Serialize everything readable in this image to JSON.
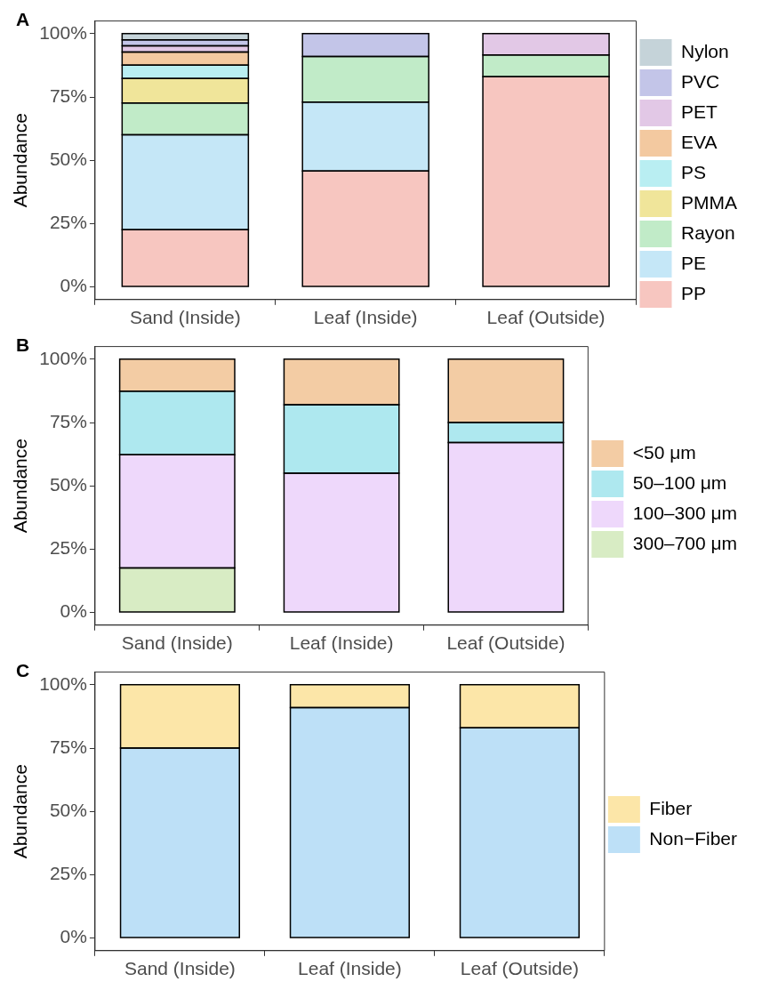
{
  "chart_data": [
    {
      "type": "bar",
      "title": "A",
      "ylabel": "Abundance",
      "categories": [
        "Sand (Inside)",
        "Leaf (Inside)",
        "Leaf (Outside)"
      ],
      "stacked": true,
      "legend": "right",
      "grid": false,
      "ylim": [
        -5,
        105
      ],
      "yticks": [
        {
          "value": 0,
          "label": "0%"
        },
        {
          "value": 25,
          "label": "25%"
        },
        {
          "value": 50,
          "label": "50%"
        },
        {
          "value": 75,
          "label": "75%"
        },
        {
          "value": 100,
          "label": "100%"
        }
      ],
      "series": [
        {
          "name": "PP",
          "color": "#f7c6c0",
          "values": [
            22.6,
            45.8,
            83.0
          ]
        },
        {
          "name": "PE",
          "color": "#c5e7f7",
          "values": [
            37.5,
            27.2,
            0
          ]
        },
        {
          "name": "Rayon",
          "color": "#c1ebc8",
          "values": [
            12.5,
            18.0,
            8.6
          ]
        },
        {
          "name": "PMMA",
          "color": "#f0e59a",
          "values": [
            9.7,
            0,
            0
          ]
        },
        {
          "name": "PS",
          "color": "#b9eef2",
          "values": [
            5.3,
            0,
            0
          ]
        },
        {
          "name": "EVA",
          "color": "#f3c9a0",
          "values": [
            5.1,
            0,
            0
          ]
        },
        {
          "name": "PET",
          "color": "#e2c8e6",
          "values": [
            2.5,
            0,
            8.4
          ]
        },
        {
          "name": "PVC",
          "color": "#c3c5e8",
          "values": [
            2.4,
            9.0,
            0
          ]
        },
        {
          "name": "Nylon",
          "color": "#c5d3d9",
          "values": [
            2.4,
            0,
            0
          ]
        }
      ]
    },
    {
      "type": "bar",
      "title": "B",
      "ylabel": "Abundance",
      "categories": [
        "Sand (Inside)",
        "Leaf (Inside)",
        "Leaf (Outside)"
      ],
      "stacked": true,
      "legend": "right",
      "grid": false,
      "ylim": [
        -5,
        105
      ],
      "yticks": [
        {
          "value": 0,
          "label": "0%"
        },
        {
          "value": 25,
          "label": "25%"
        },
        {
          "value": 50,
          "label": "50%"
        },
        {
          "value": 75,
          "label": "75%"
        },
        {
          "value": 100,
          "label": "100%"
        }
      ],
      "series": [
        {
          "name": "300–700 μm",
          "color": "#d8ecc4",
          "values": [
            17.6,
            0,
            0
          ]
        },
        {
          "name": "100–300 μm",
          "color": "#eed8fb",
          "values": [
            44.7,
            55.0,
            67.1
          ]
        },
        {
          "name": "50–100 μm",
          "color": "#aee8ef",
          "values": [
            25.1,
            27.0,
            7.9
          ]
        },
        {
          "name": "<50 μm",
          "color": "#f3cca4",
          "values": [
            12.6,
            18.0,
            25.0
          ]
        }
      ]
    },
    {
      "type": "bar",
      "title": "C",
      "ylabel": "Abundance",
      "categories": [
        "Sand (Inside)",
        "Leaf (Inside)",
        "Leaf (Outside)"
      ],
      "stacked": true,
      "legend": "right",
      "grid": false,
      "ylim": [
        -5,
        105
      ],
      "yticks": [
        {
          "value": 0,
          "label": "0%"
        },
        {
          "value": 25,
          "label": "25%"
        },
        {
          "value": 50,
          "label": "50%"
        },
        {
          "value": 75,
          "label": "75%"
        },
        {
          "value": 100,
          "label": "100%"
        }
      ],
      "series": [
        {
          "name": "Non−Fiber",
          "color": "#bde0f7",
          "values": [
            75,
            91,
            83
          ]
        },
        {
          "name": "Fiber",
          "color": "#fce6a8",
          "values": [
            25,
            9,
            17
          ]
        }
      ]
    }
  ]
}
